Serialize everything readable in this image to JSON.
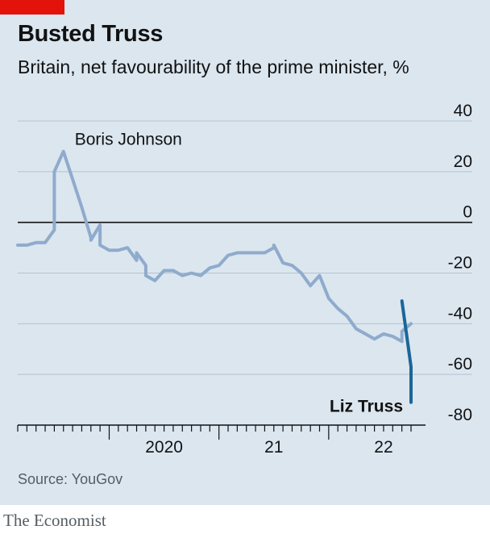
{
  "chart_data": {
    "type": "line",
    "title": "Busted Truss",
    "subtitle": "Britain, net favourability of the prime minister, %",
    "source": "Source: YouGov",
    "ylim": [
      -80,
      40
    ],
    "yticks": [
      40,
      20,
      0,
      -20,
      -40,
      -60,
      -80
    ],
    "ytick_labels": [
      "40",
      "20",
      "0",
      "-20",
      "-40",
      "-60",
      "-80"
    ],
    "xlim": [
      "2019-03",
      "2022-10"
    ],
    "xtick_labels": [
      {
        "label": "2020",
        "date": "2020-07"
      },
      {
        "label": "21",
        "date": "2021-07"
      },
      {
        "label": "22",
        "date": "2022-07"
      }
    ],
    "grid": true,
    "series": [
      {
        "name": "Boris Johnson",
        "color": "#8fabcc",
        "points": [
          [
            "2019-03",
            -9
          ],
          [
            "2019-04",
            -9
          ],
          [
            "2019-05",
            -8
          ],
          [
            "2019-06",
            -8
          ],
          [
            "2019-07",
            -3
          ],
          [
            "2019-07",
            20
          ],
          [
            "2019-08",
            28
          ],
          [
            "2019-09",
            17
          ],
          [
            "2019-10",
            6
          ],
          [
            "2019-11",
            -6
          ],
          [
            "2019-11",
            -7
          ],
          [
            "2019-12",
            -1
          ],
          [
            "2019-12",
            -9
          ],
          [
            "2020-01",
            -11
          ],
          [
            "2020-02",
            -11
          ],
          [
            "2020-03",
            -10
          ],
          [
            "2020-04",
            -15
          ],
          [
            "2020-04",
            -12
          ],
          [
            "2020-05",
            -17
          ],
          [
            "2020-05",
            -21
          ],
          [
            "2020-06",
            -23
          ],
          [
            "2020-07",
            -19
          ],
          [
            "2020-08",
            -19
          ],
          [
            "2020-09",
            -21
          ],
          [
            "2020-10",
            -20
          ],
          [
            "2020-11",
            -21
          ],
          [
            "2020-12",
            -18
          ],
          [
            "2021-01",
            -17
          ],
          [
            "2021-02",
            -13
          ],
          [
            "2021-03",
            -12
          ],
          [
            "2021-04",
            -12
          ],
          [
            "2021-05",
            -12
          ],
          [
            "2021-06",
            -12
          ],
          [
            "2021-07",
            -10
          ],
          [
            "2021-07",
            -9
          ],
          [
            "2021-08",
            -16
          ],
          [
            "2021-09",
            -17
          ],
          [
            "2021-10",
            -20
          ],
          [
            "2021-11",
            -25
          ],
          [
            "2021-12",
            -21
          ],
          [
            "2022-01",
            -30
          ],
          [
            "2022-02",
            -34
          ],
          [
            "2022-03",
            -37
          ],
          [
            "2022-04",
            -42
          ],
          [
            "2022-05",
            -44
          ],
          [
            "2022-06",
            -46
          ],
          [
            "2022-07",
            -44
          ],
          [
            "2022-08",
            -45
          ],
          [
            "2022-09",
            -47
          ],
          [
            "2022-09",
            -43
          ],
          [
            "2022-10",
            -40
          ]
        ]
      },
      {
        "name": "Liz Truss",
        "color": "#1b6698",
        "points": [
          [
            "2022-09",
            -31
          ],
          [
            "2022-10",
            -57
          ],
          [
            "2022-10",
            -71
          ]
        ]
      }
    ]
  },
  "brand": "The Economist"
}
